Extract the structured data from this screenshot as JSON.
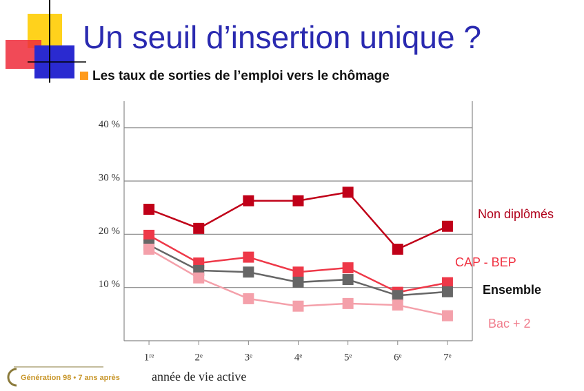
{
  "slide": {
    "title": "Un seuil d’insertion unique ?",
    "subtitle": "Les taux de sorties de l’emploi vers le chômage",
    "footer": "Génération 98 • 7 ans après"
  },
  "chart_data": {
    "type": "line",
    "x_label": "année de vie active",
    "categories": [
      "1ʳᵉ",
      "2ᵉ",
      "3ᵉ",
      "4ᵉ",
      "5ᵉ",
      "6ᵉ",
      "7ᵉ"
    ],
    "ylim": [
      0,
      45
    ],
    "yticks": [
      {
        "value": 10,
        "label": "10 %"
      },
      {
        "value": 20,
        "label": "20 %"
      },
      {
        "value": 30,
        "label": "30 %"
      },
      {
        "value": 40,
        "label": "40 %"
      }
    ],
    "grid": true,
    "series": [
      {
        "name": "Non diplômés",
        "color": "#c00018",
        "label_color": "#b0001a",
        "values": [
          24.7,
          21.1,
          26.3,
          26.3,
          27.9,
          17.2,
          21.5
        ]
      },
      {
        "name": "CAP - BEP",
        "color": "#ee3848",
        "label_color": "#f03040",
        "values": [
          19.8,
          14.6,
          15.7,
          12.9,
          13.7,
          9.1,
          10.9
        ]
      },
      {
        "name": "Ensemble",
        "color": "#666666",
        "label_color": "#111111",
        "values": [
          18,
          13.2,
          12.9,
          11,
          11.5,
          8.5,
          9.2
        ]
      },
      {
        "name": "Bac + 2",
        "color": "#f4a0aa",
        "label_color": "#f07c8c",
        "values": [
          17.2,
          11.8,
          7.9,
          6.5,
          7,
          6.7,
          4.7
        ]
      }
    ]
  }
}
